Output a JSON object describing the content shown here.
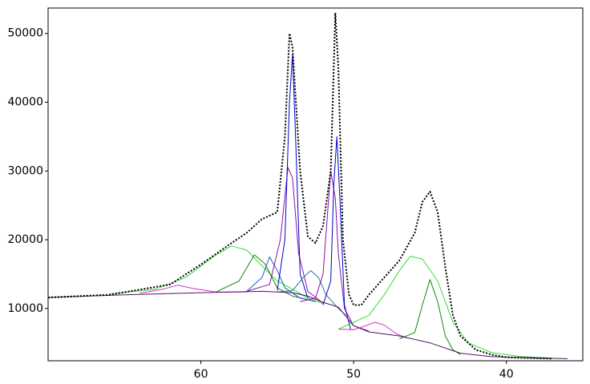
{
  "chart_data": {
    "type": "line",
    "xlim": [
      70,
      35
    ],
    "ylim": [
      2400,
      53700
    ],
    "xticks": [
      60,
      50,
      40
    ],
    "yticks": [
      10000,
      20000,
      30000,
      40000,
      50000
    ],
    "grid": false,
    "series": [
      {
        "color": "#33dd33",
        "x": [
          66,
          63,
          61,
          59,
          58,
          57,
          56,
          55,
          54,
          53,
          52
        ],
        "values": [
          12100,
          12800,
          14500,
          17800,
          19100,
          18500,
          16200,
          14000,
          12800,
          11500,
          10700
        ]
      },
      {
        "color": "#cc33cc",
        "x": [
          64,
          62.5,
          61.5,
          60.5,
          59,
          57
        ],
        "values": [
          12200,
          12800,
          13400,
          12900,
          12400,
          12400
        ]
      },
      {
        "color": "#118811",
        "x": [
          59,
          57.5,
          56.5,
          55.8,
          55,
          54,
          53
        ],
        "values": [
          12400,
          14000,
          17800,
          16500,
          13000,
          11800,
          11300
        ]
      },
      {
        "color": "#2255cc",
        "x": [
          57,
          56,
          55.5,
          55,
          54.5,
          53.5,
          52.5
        ],
        "values": [
          12500,
          14500,
          17500,
          15500,
          13000,
          11500,
          11000
        ]
      },
      {
        "color": "#8811aa",
        "x": [
          57,
          55.5,
          54.8,
          54.3,
          54,
          53.6,
          53,
          52
        ],
        "values": [
          12500,
          13500,
          20000,
          30500,
          29000,
          18000,
          12500,
          10800
        ]
      },
      {
        "color": "#0000cc",
        "x": [
          55,
          54.5,
          54.2,
          54,
          53.8,
          53.5,
          53
        ],
        "values": [
          12600,
          20000,
          40000,
          47000,
          35000,
          15000,
          11500
        ]
      },
      {
        "color": "#227799",
        "x": [
          55,
          54,
          53.3,
          52.8,
          52.3,
          51.8,
          51,
          50.5
        ],
        "values": [
          12400,
          12600,
          14500,
          15500,
          14500,
          12000,
          10000,
          9000
        ]
      },
      {
        "color": "#8811aa",
        "x": [
          53.5,
          52.5,
          52,
          51.7,
          51.5,
          51.2,
          51,
          50.6,
          50,
          49
        ],
        "values": [
          11000,
          11500,
          15000,
          24000,
          30000,
          26000,
          18000,
          10000,
          7500,
          6700
        ]
      },
      {
        "color": "#0000cc",
        "x": [
          52,
          51.5,
          51.3,
          51.1,
          50.9,
          50.6,
          50.2
        ],
        "values": [
          10500,
          14000,
          28000,
          35000,
          26000,
          10500,
          7000
        ]
      },
      {
        "color": "#cc33cc",
        "x": [
          51,
          50,
          49.2,
          48.6,
          48,
          47.2,
          46.5
        ],
        "values": [
          7000,
          6900,
          7500,
          8000,
          7600,
          6300,
          5700
        ]
      },
      {
        "color": "#33dd33",
        "x": [
          51,
          49,
          48,
          47,
          46.3,
          45.5,
          44.5,
          43.5,
          42.5,
          41,
          39,
          37
        ],
        "values": [
          7000,
          9000,
          12000,
          15500,
          17600,
          17200,
          14000,
          8000,
          5000,
          3600,
          3000,
          2800
        ]
      },
      {
        "color": "#118811",
        "x": [
          47,
          46,
          45.5,
          45,
          44.5,
          44,
          43.5,
          43
        ],
        "values": [
          5600,
          6500,
          10500,
          14200,
          11000,
          6000,
          4000,
          3300
        ]
      },
      {
        "color": "#551166",
        "x": [
          70,
          65,
          60,
          56,
          54,
          53,
          52,
          51,
          50,
          49,
          47,
          45,
          43,
          41,
          38,
          36
        ],
        "values": [
          11600,
          12000,
          12300,
          12500,
          12300,
          11800,
          10900,
          10200,
          7500,
          6600,
          6000,
          5000,
          3500,
          3000,
          2800,
          2700
        ]
      },
      {
        "color": "#000000",
        "dashed": true,
        "x": [
          70,
          66,
          62,
          60,
          58,
          57,
          56,
          55,
          54.5,
          54.2,
          54,
          53.5,
          53,
          52.5,
          52,
          51.5,
          51.2,
          51,
          50.7,
          50.3,
          50,
          49.5,
          49,
          48,
          47,
          46,
          45.5,
          45,
          44.5,
          44,
          43.5,
          43,
          42,
          41,
          40,
          37
        ],
        "values": [
          11600,
          12000,
          13500,
          16400,
          19500,
          21000,
          23000,
          24000,
          35000,
          50000,
          48000,
          30000,
          20500,
          19500,
          22000,
          30000,
          53000,
          45000,
          20000,
          12000,
          10500,
          10500,
          12000,
          14500,
          17000,
          21000,
          25500,
          27000,
          24000,
          16000,
          9000,
          6000,
          4000,
          3300,
          2900,
          2700
        ]
      }
    ]
  }
}
